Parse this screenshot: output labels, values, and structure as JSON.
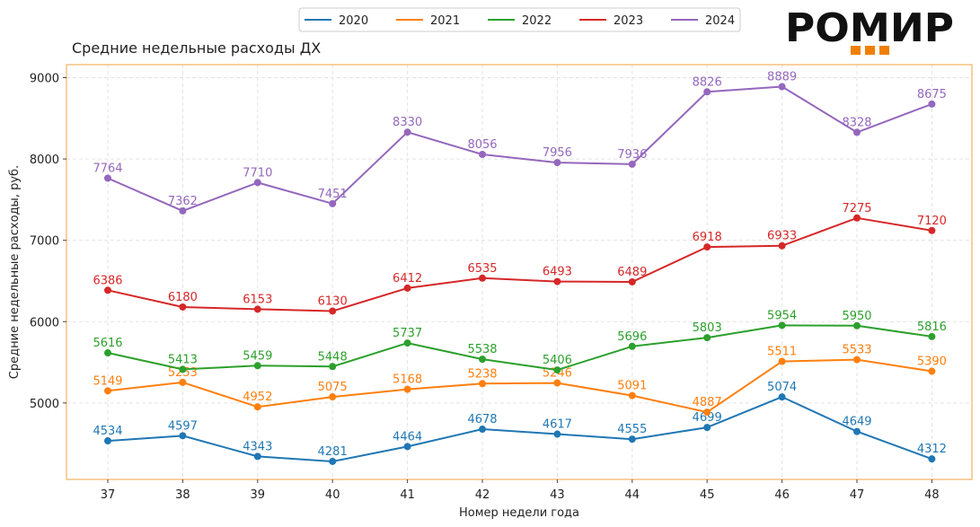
{
  "chart_data": {
    "type": "line",
    "title": "Средние недельные расходы ДХ",
    "xlabel": "Номер недели года",
    "ylabel": "Средние недельные расходы, руб.",
    "categories": [
      "37",
      "38",
      "39",
      "40",
      "41",
      "42",
      "43",
      "44",
      "45",
      "46",
      "47",
      "48"
    ],
    "ylim": [
      4060,
      9160
    ],
    "yticks": [
      5000,
      6000,
      7000,
      8000,
      9000
    ],
    "grid": true,
    "legend_position": "top-center",
    "series": [
      {
        "name": "2020",
        "color": "#1f77b4",
        "values": [
          4534,
          4597,
          4343,
          4281,
          4464,
          4678,
          4617,
          4555,
          4699,
          5074,
          4649,
          4312
        ]
      },
      {
        "name": "2021",
        "color": "#ff7f0e",
        "values": [
          5149,
          5253,
          4952,
          5075,
          5168,
          5238,
          5246,
          5091,
          4887,
          5511,
          5533,
          5390
        ]
      },
      {
        "name": "2022",
        "color": "#2ca02c",
        "values": [
          5616,
          5413,
          5459,
          5448,
          5737,
          5538,
          5406,
          5696,
          5803,
          5954,
          5950,
          5816
        ]
      },
      {
        "name": "2023",
        "color": "#d62728",
        "values": [
          6386,
          6180,
          6153,
          6130,
          6412,
          6535,
          6493,
          6489,
          6918,
          6933,
          7275,
          7120
        ]
      },
      {
        "name": "2024",
        "color": "#9467bd",
        "values": [
          7764,
          7362,
          7710,
          7451,
          8330,
          8056,
          7956,
          7936,
          8826,
          8889,
          8328,
          8675
        ]
      }
    ]
  },
  "logo": {
    "text": "РОМИР",
    "accent_color": "#f07f00",
    "border_color": "#f0a040"
  }
}
